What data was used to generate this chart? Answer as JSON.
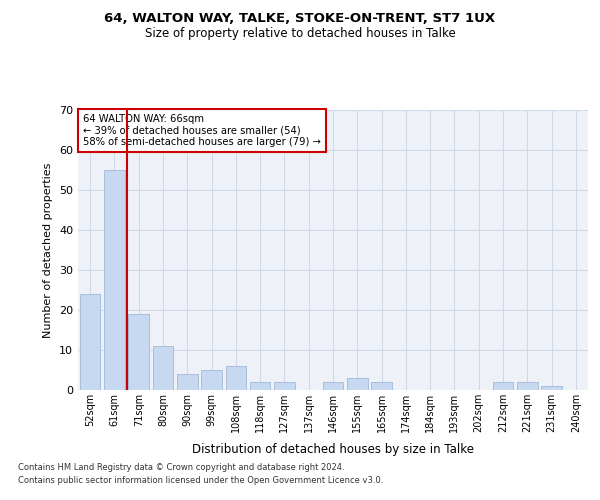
{
  "title1": "64, WALTON WAY, TALKE, STOKE-ON-TRENT, ST7 1UX",
  "title2": "Size of property relative to detached houses in Talke",
  "xlabel": "Distribution of detached houses by size in Talke",
  "ylabel": "Number of detached properties",
  "categories": [
    "52sqm",
    "61sqm",
    "71sqm",
    "80sqm",
    "90sqm",
    "99sqm",
    "108sqm",
    "118sqm",
    "127sqm",
    "137sqm",
    "146sqm",
    "155sqm",
    "165sqm",
    "174sqm",
    "184sqm",
    "193sqm",
    "202sqm",
    "212sqm",
    "221sqm",
    "231sqm",
    "240sqm"
  ],
  "values": [
    24,
    55,
    19,
    11,
    4,
    5,
    6,
    2,
    2,
    0,
    2,
    3,
    2,
    0,
    0,
    0,
    0,
    2,
    2,
    1,
    0
  ],
  "bar_color": "#c6d9f0",
  "bar_edgecolor": "#a0b8d8",
  "grid_color": "#d0d8e8",
  "background_color": "#eef2f8",
  "annotation_text": "64 WALTON WAY: 66sqm\n← 39% of detached houses are smaller (54)\n58% of semi-detached houses are larger (79) →",
  "annotation_box_edgecolor": "#cc0000",
  "vline_x": 1.5,
  "vline_color": "#cc0000",
  "ylim": [
    0,
    70
  ],
  "yticks": [
    0,
    10,
    20,
    30,
    40,
    50,
    60,
    70
  ],
  "footer1": "Contains HM Land Registry data © Crown copyright and database right 2024.",
  "footer2": "Contains public sector information licensed under the Open Government Licence v3.0."
}
